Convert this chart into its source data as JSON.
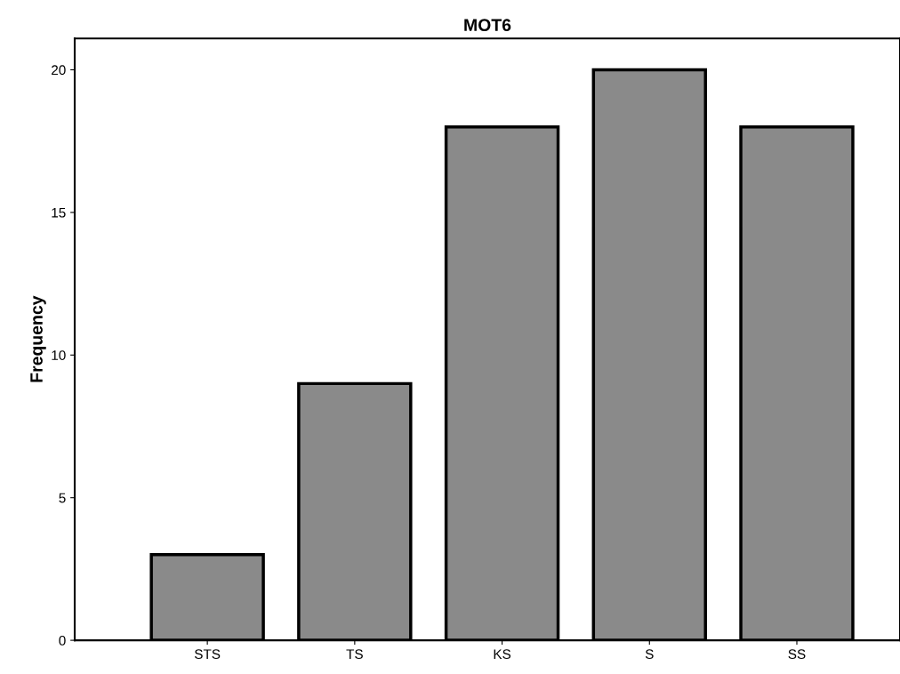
{
  "chart_data": {
    "type": "bar",
    "title": "MOT6",
    "ylabel": "Frequency",
    "categories": [
      "STS",
      "TS",
      "KS",
      "S",
      "SS"
    ],
    "values": [
      3,
      9,
      18,
      20,
      18
    ],
    "color": "#8a8a8a",
    "ylim": [
      0,
      21.1
    ],
    "yticks": [
      0,
      5,
      10,
      15,
      20
    ],
    "grid": false,
    "legend": false
  }
}
